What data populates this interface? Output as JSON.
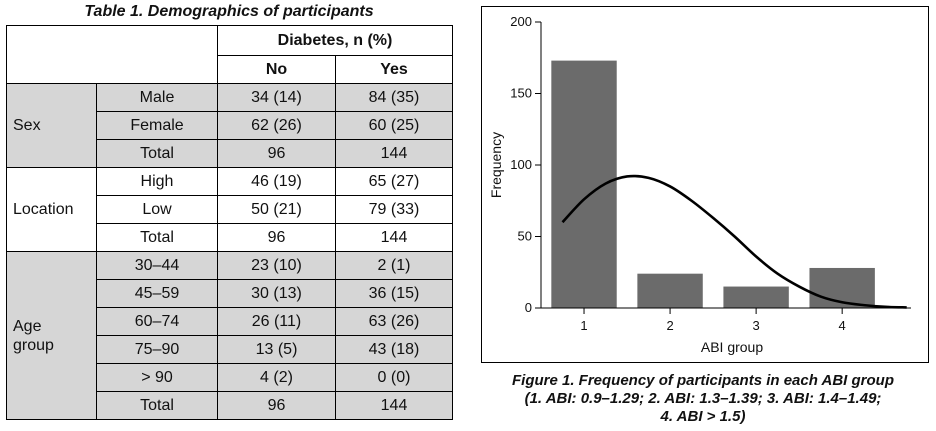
{
  "table": {
    "title": "Table 1. Demographics of participants",
    "header": {
      "group": "Diabetes, n (%)",
      "no": "No",
      "yes": "Yes"
    },
    "groups": [
      {
        "label": "Sex",
        "rows": [
          {
            "label": "Male",
            "no": "34 (14)",
            "yes": "84 (35)"
          },
          {
            "label": "Female",
            "no": "62 (26)",
            "yes": "60 (25)"
          },
          {
            "label": "Total",
            "no": "96",
            "yes": "144"
          }
        ]
      },
      {
        "label": "Location",
        "rows": [
          {
            "label": "High",
            "no": "46 (19)",
            "yes": "65 (27)"
          },
          {
            "label": "Low",
            "no": "50 (21)",
            "yes": "79 (33)"
          },
          {
            "label": "Total",
            "no": "96",
            "yes": "144"
          }
        ]
      },
      {
        "label_line1": "Age",
        "label_line2": "group",
        "rows": [
          {
            "label": "30–44",
            "no": "23 (10)",
            "yes": "2 (1)"
          },
          {
            "label": "45–59",
            "no": "30 (13)",
            "yes": "36 (15)"
          },
          {
            "label": "60–74",
            "no": "26 (11)",
            "yes": "63 (26)"
          },
          {
            "label": "75–90",
            "no": "13 (5)",
            "yes": "43 (18)"
          },
          {
            "label": "> 90",
            "no": "4 (2)",
            "yes": "0 (0)"
          },
          {
            "label": "Total",
            "no": "96",
            "yes": "144"
          }
        ]
      }
    ]
  },
  "figure": {
    "caption_line1": "Figure 1. Frequency of participants in each ABI group",
    "caption_line2": "(1. ABI: 0.9–1.29; 2. ABI: 1.3–1.39; 3. ABI: 1.4–1.49;",
    "caption_line3": "4. ABI > 1.5)"
  },
  "chart_data": {
    "type": "bar",
    "xlabel": "ABI group",
    "ylabel": "Frequency",
    "categories": [
      "1",
      "2",
      "3",
      "4"
    ],
    "values": [
      173,
      24,
      15,
      28
    ],
    "ylim": [
      0,
      200
    ],
    "yticks": [
      0,
      50,
      100,
      150,
      200
    ],
    "bar_color": "#6b6b6b",
    "grid": false,
    "overlay_curve": {
      "type": "normal-density",
      "color": "#000000",
      "x": [
        0.75,
        1.0,
        1.25,
        1.5,
        1.75,
        2.0,
        2.25,
        2.5,
        2.75,
        3.0,
        3.25,
        3.5,
        3.75,
        4.0,
        4.25,
        4.5,
        4.75
      ],
      "y": [
        60,
        76,
        87,
        92,
        91,
        85,
        75,
        63,
        50,
        36,
        24,
        15,
        8,
        4,
        2,
        0.8,
        0.4
      ]
    }
  }
}
